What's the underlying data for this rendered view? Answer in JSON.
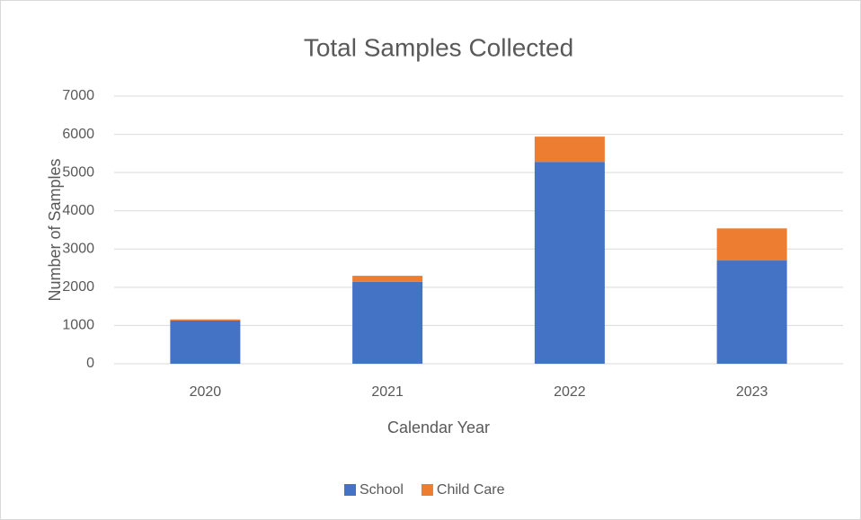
{
  "chart_data": {
    "type": "stacked_bar",
    "title": "Total Samples Collected",
    "x_label": "Calendar Year",
    "y_label": "Number of Samples",
    "categories": [
      "2020",
      "2021",
      "2022",
      "2023"
    ],
    "series": [
      {
        "name": "School",
        "color": "#4472c4",
        "values": [
          1130,
          2140,
          5280,
          2700
        ]
      },
      {
        "name": "Child Care",
        "color": "#ed7d31",
        "values": [
          30,
          160,
          660,
          840
        ]
      }
    ],
    "ylim": [
      0,
      7000
    ],
    "yticks": [
      0,
      1000,
      2000,
      3000,
      4000,
      5000,
      6000,
      7000
    ],
    "grid": true,
    "legend": "bottom"
  }
}
